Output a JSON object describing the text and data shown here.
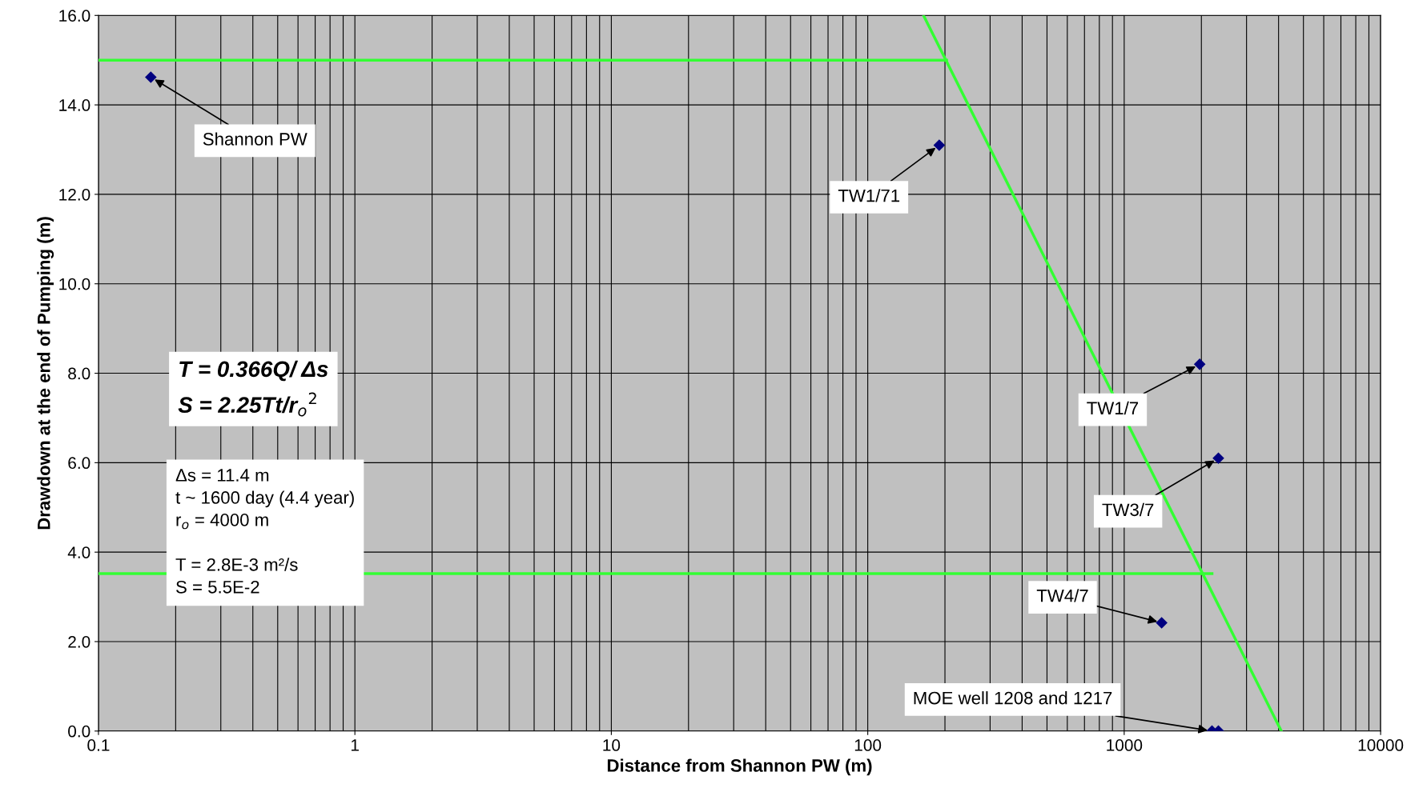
{
  "chart_data": {
    "type": "scatter",
    "xlabel": "Distance from Shannon PW (m)",
    "ylabel": "Drawdown at the end of Pumping (m)",
    "log": "x",
    "xlim": [
      0.1,
      10000
    ],
    "ylim": [
      0,
      16
    ],
    "xticks": [
      0.1,
      1,
      10,
      100,
      1000,
      10000
    ],
    "yticks": [
      {
        "value": 0,
        "label": "0.0"
      },
      {
        "value": 2,
        "label": "2.0"
      },
      {
        "value": 4,
        "label": "4.0"
      },
      {
        "value": 6,
        "label": "6.0"
      },
      {
        "value": 8,
        "label": "8.0"
      },
      {
        "value": 10,
        "label": "10.0"
      },
      {
        "value": 12,
        "label": "12.0"
      },
      {
        "value": 14,
        "label": "14.0"
      },
      {
        "value": 16,
        "label": "16.0"
      }
    ],
    "grid": true,
    "legend": false,
    "marker": "diamond",
    "series": [
      {
        "color": "#000080",
        "x": [
          0.16,
          190,
          1970,
          2330,
          1400,
          2200,
          2330
        ],
        "values": [
          14.62,
          13.1,
          8.2,
          6.1,
          2.42,
          0,
          0
        ]
      },
      {
        "type": "line",
        "marker": "none",
        "color": "#33ff33",
        "x": [
          0.1,
          203
        ],
        "values": [
          15.0,
          15.0
        ]
      },
      {
        "type": "line",
        "marker": "none",
        "color": "#33ff33",
        "x": [
          0.1,
          2200
        ],
        "values": [
          3.52,
          3.52
        ]
      },
      {
        "type": "line",
        "marker": "none",
        "color": "#33ff33",
        "x": [
          165,
          4100
        ],
        "values": [
          16,
          0
        ]
      }
    ],
    "annotations": [
      {
        "text": "Shannon PW",
        "x": 0.16,
        "y": 14.62
      },
      {
        "text": "TW1/71",
        "x": 190,
        "y": 13.1
      },
      {
        "text": "TW1/7",
        "x": 1970,
        "y": 8.2
      },
      {
        "text": "TW3/7",
        "x": 2330,
        "y": 6.1
      },
      {
        "text": "TW4/7",
        "x": 1400,
        "y": 2.42
      },
      {
        "text": "MOE well 1208 and 1217",
        "x": 2200,
        "y": 0
      },
      "T = 0.366Q/ Δs\nS = 2.25Tt/r$_{o}$$^{2}$",
      "Δs = 11.4 m\nt ~ 1600 day (4.4 year)\nr$_{o}$ = 4000 m\n\nT = 2.8E-3 m²/s\nS = 5.5E-2"
    ]
  }
}
